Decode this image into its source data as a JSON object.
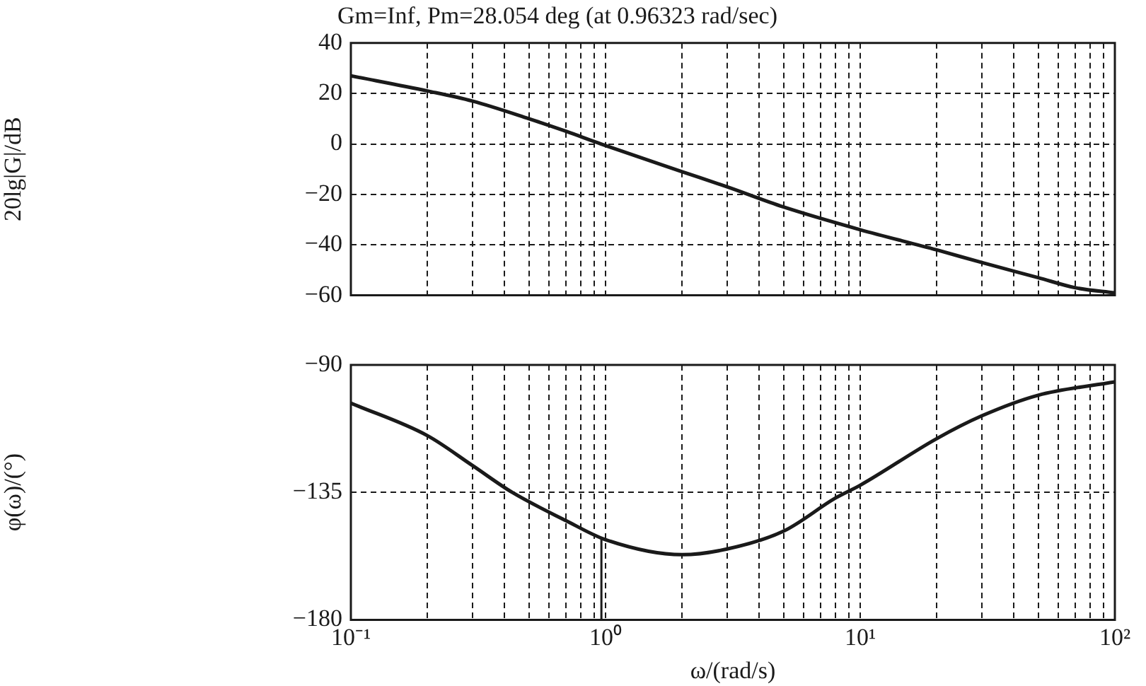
{
  "chart_data": [
    {
      "type": "line",
      "title": "Gm=Inf, Pm=28.054 deg (at 0.96323 rad/sec)",
      "ylabel": "20lg|G|/dB",
      "log": "x",
      "grid": true,
      "legend": false,
      "tick_labels": "y",
      "marker": "none",
      "line_style": "solid",
      "xlim": [
        0.1,
        100
      ],
      "xticks": [
        {
          "value": 0.1,
          "label": null
        },
        {
          "value": 0.2,
          "label": null
        },
        {
          "value": 0.3,
          "label": null
        },
        {
          "value": 0.4,
          "label": null
        },
        {
          "value": 0.5,
          "label": null
        },
        {
          "value": 0.6,
          "label": null
        },
        {
          "value": 0.7,
          "label": null
        },
        {
          "value": 0.8,
          "label": null
        },
        {
          "value": 0.9,
          "label": null
        },
        {
          "value": 1,
          "label": null
        },
        {
          "value": 2,
          "label": null
        },
        {
          "value": 3,
          "label": null
        },
        {
          "value": 4,
          "label": null
        },
        {
          "value": 5,
          "label": null
        },
        {
          "value": 6,
          "label": null
        },
        {
          "value": 7,
          "label": null
        },
        {
          "value": 8,
          "label": null
        },
        {
          "value": 9,
          "label": null
        },
        {
          "value": 10,
          "label": null
        },
        {
          "value": 20,
          "label": null
        },
        {
          "value": 30,
          "label": null
        },
        {
          "value": 40,
          "label": null
        },
        {
          "value": 50,
          "label": null
        },
        {
          "value": 60,
          "label": null
        },
        {
          "value": 70,
          "label": null
        },
        {
          "value": 80,
          "label": null
        },
        {
          "value": 90,
          "label": null
        },
        {
          "value": 100,
          "label": null
        }
      ],
      "ylim": [
        -60,
        40
      ],
      "yticks": [
        -60,
        -40,
        -20,
        0,
        20,
        40
      ],
      "series": [
        {
          "color": "#1a1a1a",
          "x": [
            0.1,
            0.2,
            0.3,
            0.5,
            0.7,
            0.96,
            2,
            3,
            5,
            10,
            20,
            30,
            50,
            70,
            100
          ],
          "values": [
            27,
            21,
            17,
            10,
            5,
            0,
            -11,
            -17,
            -25,
            -34,
            -42,
            -47,
            -53,
            -57,
            -59
          ]
        }
      ]
    },
    {
      "type": "line",
      "ylabel": "φ(ω)/(°)",
      "xlabel": "ω/(rad/s)",
      "log": "x",
      "grid": true,
      "legend": false,
      "marker": "none",
      "line_style": "solid",
      "xlim": [
        0.1,
        100
      ],
      "xticks": [
        {
          "value": 0.1,
          "label": "10⁻¹"
        },
        {
          "value": 0.2,
          "label": null
        },
        {
          "value": 0.3,
          "label": null
        },
        {
          "value": 0.4,
          "label": null
        },
        {
          "value": 0.5,
          "label": null
        },
        {
          "value": 0.6,
          "label": null
        },
        {
          "value": 0.7,
          "label": null
        },
        {
          "value": 0.8,
          "label": null
        },
        {
          "value": 0.9,
          "label": null
        },
        {
          "value": 1,
          "label": "10⁰"
        },
        {
          "value": 2,
          "label": null
        },
        {
          "value": 3,
          "label": null
        },
        {
          "value": 4,
          "label": null
        },
        {
          "value": 5,
          "label": null
        },
        {
          "value": 6,
          "label": null
        },
        {
          "value": 7,
          "label": null
        },
        {
          "value": 8,
          "label": null
        },
        {
          "value": 9,
          "label": null
        },
        {
          "value": 10,
          "label": "10¹"
        },
        {
          "value": 20,
          "label": null
        },
        {
          "value": 30,
          "label": null
        },
        {
          "value": 40,
          "label": null
        },
        {
          "value": 50,
          "label": null
        },
        {
          "value": 60,
          "label": null
        },
        {
          "value": 70,
          "label": null
        },
        {
          "value": 80,
          "label": null
        },
        {
          "value": 90,
          "label": null
        },
        {
          "value": 100,
          "label": "10²"
        }
      ],
      "ylim": [
        -180,
        -90
      ],
      "yticks": [
        -180,
        -135,
        -90
      ],
      "ref_lines": [
        {
          "axis": "x",
          "value": 0.96323,
          "color": "#1a1a1a"
        }
      ],
      "series": [
        {
          "color": "#1a1a1a",
          "x": [
            0.1,
            0.2,
            0.3,
            0.43,
            0.7,
            1,
            2,
            3,
            5,
            8,
            10,
            20,
            30,
            50,
            100
          ],
          "values": [
            -103.5,
            -115,
            -125.5,
            -135,
            -145,
            -151.7,
            -157,
            -155,
            -148.7,
            -137,
            -132.5,
            -116,
            -108,
            -100.7,
            -96
          ]
        }
      ]
    }
  ]
}
